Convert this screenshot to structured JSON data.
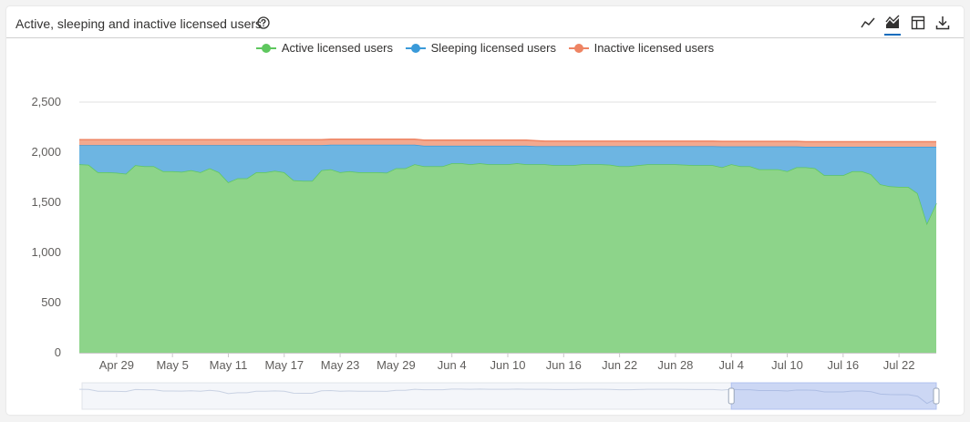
{
  "header": {
    "title": "Active, sleeping and inactive licensed users",
    "tools": [
      {
        "name": "line-chart-icon",
        "active": false
      },
      {
        "name": "area-chart-icon",
        "active": true
      },
      {
        "name": "table-icon",
        "active": false
      },
      {
        "name": "download-icon",
        "active": false
      }
    ]
  },
  "colors": {
    "active": "#5ec75e",
    "active_fill": "#8dd48a",
    "sleeping": "#3a9ad9",
    "sleeping_fill": "#6db5e2",
    "inactive": "#ee8463",
    "inactive_fill": "#f2a98f",
    "accent": "#0f6cbd"
  },
  "chart_data": {
    "type": "area",
    "stacked": true,
    "title": "Active, sleeping and inactive licensed users",
    "x_start": "2024-04-25",
    "x_end": "2024-07-26",
    "x": [
      "Apr 25",
      "Apr 26",
      "Apr 27",
      "Apr 28",
      "Apr 29",
      "Apr 30",
      "May 1",
      "May 2",
      "May 3",
      "May 4",
      "May 5",
      "May 6",
      "May 7",
      "May 8",
      "May 9",
      "May 10",
      "May 11",
      "May 12",
      "May 13",
      "May 14",
      "May 15",
      "May 16",
      "May 17",
      "May 18",
      "May 19",
      "May 20",
      "May 21",
      "May 22",
      "May 23",
      "May 24",
      "May 25",
      "May 26",
      "May 27",
      "May 28",
      "May 29",
      "May 30",
      "May 31",
      "Jun 1",
      "Jun 2",
      "Jun 3",
      "Jun 4",
      "Jun 5",
      "Jun 6",
      "Jun 7",
      "Jun 8",
      "Jun 9",
      "Jun 10",
      "Jun 11",
      "Jun 12",
      "Jun 13",
      "Jun 14",
      "Jun 15",
      "Jun 16",
      "Jun 17",
      "Jun 18",
      "Jun 19",
      "Jun 20",
      "Jun 21",
      "Jun 22",
      "Jun 23",
      "Jun 24",
      "Jun 25",
      "Jun 26",
      "Jun 27",
      "Jun 28",
      "Jun 29",
      "Jun 30",
      "Jul 1",
      "Jul 2",
      "Jul 3",
      "Jul 4",
      "Jul 5",
      "Jul 6",
      "Jul 7",
      "Jul 8",
      "Jul 9",
      "Jul 10",
      "Jul 11",
      "Jul 12",
      "Jul 13",
      "Jul 14",
      "Jul 15",
      "Jul 16",
      "Jul 17",
      "Jul 18",
      "Jul 19",
      "Jul 20",
      "Jul 21",
      "Jul 22",
      "Jul 23",
      "Jul 24",
      "Jul 25",
      "Jul 26"
    ],
    "x_tick_labels": [
      "Apr 29",
      "May 5",
      "May 11",
      "May 17",
      "May 23",
      "May 29",
      "Jun 4",
      "Jun 10",
      "Jun 16",
      "Jun 22",
      "Jun 28",
      "Jul 4",
      "Jul 10",
      "Jul 16",
      "Jul 22"
    ],
    "y_ticks": [
      0,
      500,
      1000,
      1500,
      2000,
      2500
    ],
    "y_tick_labels": [
      "0",
      "500",
      "1,000",
      "1,500",
      "2,000",
      "2,500"
    ],
    "ylim": [
      0,
      2500
    ],
    "grid": true,
    "legend_position": "top",
    "series": [
      {
        "name": "Active licensed users",
        "color_key": "active",
        "values": [
          1880,
          1875,
          1800,
          1800,
          1795,
          1785,
          1870,
          1860,
          1860,
          1810,
          1810,
          1805,
          1820,
          1800,
          1840,
          1800,
          1700,
          1740,
          1740,
          1800,
          1800,
          1815,
          1800,
          1720,
          1715,
          1715,
          1820,
          1830,
          1800,
          1810,
          1800,
          1800,
          1800,
          1795,
          1840,
          1840,
          1880,
          1860,
          1860,
          1860,
          1890,
          1890,
          1880,
          1890,
          1880,
          1880,
          1880,
          1890,
          1880,
          1880,
          1880,
          1870,
          1870,
          1870,
          1880,
          1880,
          1880,
          1875,
          1860,
          1860,
          1870,
          1880,
          1880,
          1880,
          1880,
          1875,
          1870,
          1870,
          1870,
          1850,
          1880,
          1860,
          1860,
          1830,
          1830,
          1830,
          1810,
          1850,
          1850,
          1840,
          1770,
          1770,
          1770,
          1810,
          1810,
          1780,
          1680,
          1660,
          1655,
          1655,
          1590,
          1290,
          1490
        ]
      },
      {
        "name": "Sleeping licensed users",
        "color_key": "sleeping",
        "values": [
          190,
          195,
          270,
          270,
          275,
          285,
          200,
          210,
          210,
          260,
          260,
          265,
          250,
          270,
          230,
          270,
          370,
          330,
          330,
          270,
          270,
          255,
          270,
          350,
          355,
          355,
          250,
          245,
          275,
          265,
          275,
          275,
          275,
          280,
          235,
          235,
          195,
          205,
          205,
          205,
          175,
          175,
          185,
          175,
          185,
          185,
          185,
          175,
          185,
          180,
          180,
          190,
          190,
          190,
          180,
          180,
          180,
          185,
          200,
          200,
          190,
          180,
          180,
          180,
          180,
          185,
          190,
          190,
          190,
          208,
          178,
          198,
          198,
          228,
          228,
          228,
          248,
          208,
          205,
          215,
          285,
          285,
          285,
          245,
          245,
          275,
          375,
          395,
          400,
          400,
          465,
          765,
          565
        ]
      },
      {
        "name": "Inactive licensed users",
        "color_key": "inactive",
        "values": [
          55,
          55,
          55,
          55,
          55,
          55,
          55,
          55,
          55,
          55,
          55,
          55,
          55,
          55,
          55,
          55,
          55,
          55,
          55,
          55,
          55,
          55,
          55,
          55,
          55,
          55,
          55,
          55,
          55,
          55,
          55,
          55,
          55,
          55,
          55,
          55,
          55,
          55,
          55,
          55,
          55,
          55,
          55,
          55,
          55,
          55,
          55,
          55,
          55,
          55,
          50,
          50,
          50,
          50,
          50,
          50,
          50,
          50,
          50,
          50,
          50,
          50,
          50,
          50,
          50,
          50,
          50,
          50,
          50,
          50,
          50,
          50,
          50,
          50,
          50,
          50,
          50,
          50,
          50,
          50,
          50,
          50,
          50,
          50,
          50,
          50,
          50,
          50,
          50,
          50,
          50,
          50,
          50
        ]
      }
    ],
    "navigator": {
      "selection_start": "2024-07-04",
      "selection_end": "2024-07-26"
    }
  }
}
